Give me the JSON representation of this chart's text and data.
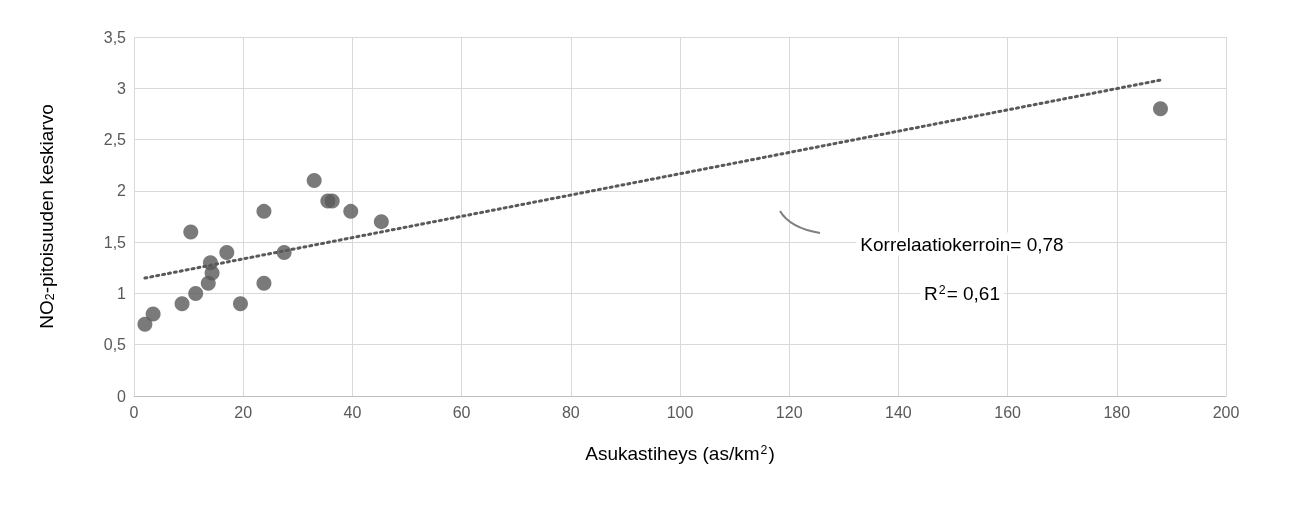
{
  "chart_data": {
    "type": "scatter",
    "xlabel": "Asukastiheys (as/km$^{2}$)",
    "ylabel": "NO$_{2}$-pitoisuuden keskiarvo",
    "annotations": [
      "Korrelaatiokerroin= 0,78",
      "R$^{2}$= 0,61"
    ],
    "series": [
      {
        "color": "#595959",
        "marker": "circle",
        "x": [
          2,
          3.5,
          8.8,
          11.3,
          10.4,
          13.6,
          14,
          14.3,
          17,
          19.5,
          23.8,
          23.8,
          27.5,
          33,
          35.5,
          36.3,
          39.7,
          45.3,
          188
        ],
        "values": [
          0.7,
          0.8,
          0.9,
          1.0,
          1.6,
          1.1,
          1.3,
          1.2,
          1.4,
          0.9,
          1.8,
          1.1,
          1.4,
          2.1,
          1.9,
          1.9,
          1.8,
          1.7,
          2.8
        ]
      },
      {
        "type": "line",
        "color": "#595959",
        "line_style": "dotted",
        "marker": "none",
        "x": [
          2,
          188
        ],
        "values": [
          1.15,
          3.08
        ]
      }
    ],
    "xlim": [
      0,
      200
    ],
    "xticks": [
      0,
      20,
      40,
      60,
      80,
      100,
      120,
      140,
      160,
      180,
      200
    ],
    "ylim": [
      0,
      3.5
    ],
    "yticks": [
      0,
      {
        "value": 0.5,
        "label": "0,5"
      },
      1,
      {
        "value": 1.5,
        "label": "1,5"
      },
      2,
      {
        "value": 2.5,
        "label": "2,5"
      },
      3,
      {
        "value": 3.5,
        "label": "3,5"
      }
    ],
    "grid": true
  }
}
